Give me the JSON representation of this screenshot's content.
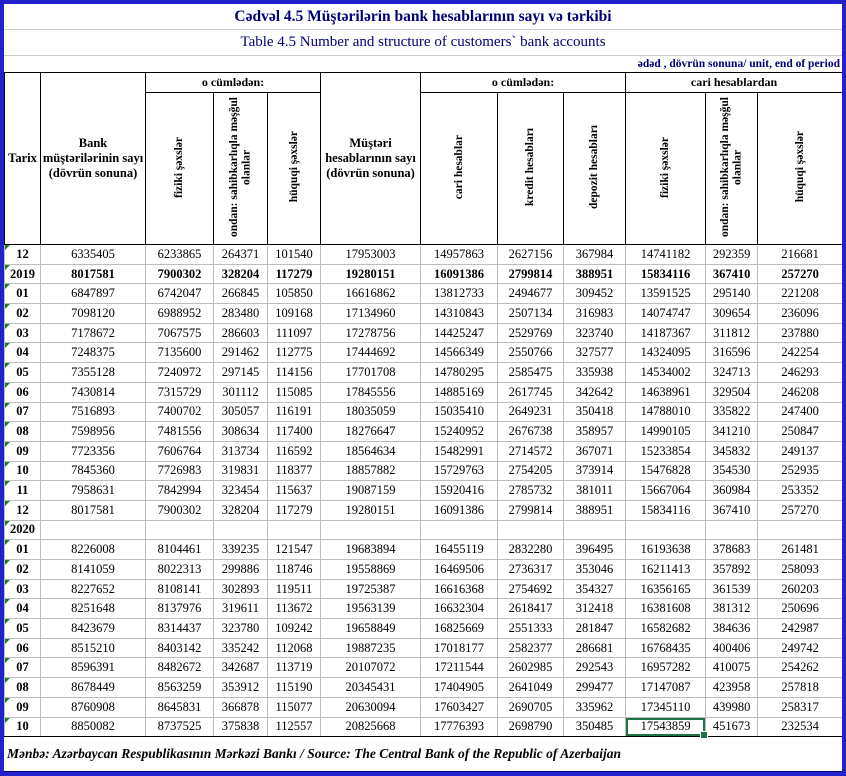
{
  "page": {
    "title_az": "Cədvəl 4.5 Müştərilərin bank hesablarının sayı və tərkibi",
    "title_en": "Table 4.5 Number and structure of customers` bank accounts",
    "unit_note": "ədəd , dövrün sonuna/ unit, end of period",
    "footer": "Mənbə: Azərbaycan Respublikasının Mərkəzi Bankı / Source: The Central Bank of the Republic of Azerbaijan"
  },
  "colors": {
    "frame_blue": "#2222cc",
    "title_navy": "#000077",
    "selection_green": "#217346",
    "flag_green": "#1f7a33",
    "gridline_gray": "#bdbdbd"
  },
  "table": {
    "header": {
      "tarix": "Tarix",
      "bank_customers": "Bank müştərilərinin sayı (dövrün sonuna)",
      "including1": "o cümlədən:",
      "customer_accounts": "Müştəri hesablarının sayı (dövrün sonuna)",
      "including2": "o cümlədən:",
      "from_current": "cari hesablardan",
      "sub": [
        "fiziki şəxslər",
        "ondan: sahibkarlıqla məşğul olanlar",
        "hüquqi şəxslər",
        "cari hesablar",
        "kredit hesabları",
        "depozit hesabları",
        "fiziki şəxslər",
        "ondan: sahibkarlıqla məşğul olanlar",
        "hüquqi şəxslər"
      ]
    },
    "rows": [
      {
        "label": "12",
        "bold": false,
        "values": [
          "6335405",
          "6233865",
          "264371",
          "101540",
          "17953003",
          "14957863",
          "2627156",
          "367984",
          "14741182",
          "292359",
          "216681"
        ]
      },
      {
        "label": "2019",
        "bold": true,
        "values": [
          "8017581",
          "7900302",
          "328204",
          "117279",
          "19280151",
          "16091386",
          "2799814",
          "388951",
          "15834116",
          "367410",
          "257270"
        ]
      },
      {
        "label": "01",
        "bold": false,
        "values": [
          "6847897",
          "6742047",
          "266845",
          "105850",
          "16616862",
          "13812733",
          "2494677",
          "309452",
          "13591525",
          "295140",
          "221208"
        ]
      },
      {
        "label": "02",
        "bold": false,
        "values": [
          "7098120",
          "6988952",
          "283480",
          "109168",
          "17134960",
          "14310843",
          "2507134",
          "316983",
          "14074747",
          "309654",
          "236096"
        ]
      },
      {
        "label": "03",
        "bold": false,
        "values": [
          "7178672",
          "7067575",
          "286603",
          "111097",
          "17278756",
          "14425247",
          "2529769",
          "323740",
          "14187367",
          "311812",
          "237880"
        ]
      },
      {
        "label": "04",
        "bold": false,
        "values": [
          "7248375",
          "7135600",
          "291462",
          "112775",
          "17444692",
          "14566349",
          "2550766",
          "327577",
          "14324095",
          "316596",
          "242254"
        ]
      },
      {
        "label": "05",
        "bold": false,
        "values": [
          "7355128",
          "7240972",
          "297145",
          "114156",
          "17701708",
          "14780295",
          "2585475",
          "335938",
          "14534002",
          "324713",
          "246293"
        ]
      },
      {
        "label": "06",
        "bold": false,
        "values": [
          "7430814",
          "7315729",
          "301112",
          "115085",
          "17845556",
          "14885169",
          "2617745",
          "342642",
          "14638961",
          "329504",
          "246208"
        ]
      },
      {
        "label": "07",
        "bold": false,
        "values": [
          "7516893",
          "7400702",
          "305057",
          "116191",
          "18035059",
          "15035410",
          "2649231",
          "350418",
          "14788010",
          "335822",
          "247400"
        ]
      },
      {
        "label": "08",
        "bold": false,
        "values": [
          "7598956",
          "7481556",
          "308634",
          "117400",
          "18276647",
          "15240952",
          "2676738",
          "358957",
          "14990105",
          "341210",
          "250847"
        ]
      },
      {
        "label": "09",
        "bold": false,
        "values": [
          "7723356",
          "7606764",
          "313734",
          "116592",
          "18564634",
          "15482991",
          "2714572",
          "367071",
          "15233854",
          "345832",
          "249137"
        ]
      },
      {
        "label": "10",
        "bold": false,
        "values": [
          "7845360",
          "7726983",
          "319831",
          "118377",
          "18857882",
          "15729763",
          "2754205",
          "373914",
          "15476828",
          "354530",
          "252935"
        ]
      },
      {
        "label": "11",
        "bold": false,
        "values": [
          "7958631",
          "7842994",
          "323454",
          "115637",
          "19087159",
          "15920416",
          "2785732",
          "381011",
          "15667064",
          "360984",
          "253352"
        ]
      },
      {
        "label": "12",
        "bold": false,
        "values": [
          "8017581",
          "7900302",
          "328204",
          "117279",
          "19280151",
          "16091386",
          "2799814",
          "388951",
          "15834116",
          "367410",
          "257270"
        ]
      },
      {
        "label": "2020",
        "bold": true,
        "values": [
          "",
          "",
          "",
          "",
          "",
          "",
          "",
          "",
          "",
          "",
          ""
        ]
      },
      {
        "label": "01",
        "bold": false,
        "values": [
          "8226008",
          "8104461",
          "339235",
          "121547",
          "19683894",
          "16455119",
          "2832280",
          "396495",
          "16193638",
          "378683",
          "261481"
        ]
      },
      {
        "label": "02",
        "bold": false,
        "values": [
          "8141059",
          "8022313",
          "299886",
          "118746",
          "19558869",
          "16469506",
          "2736317",
          "353046",
          "16211413",
          "357892",
          "258093"
        ]
      },
      {
        "label": "03",
        "bold": false,
        "values": [
          "8227652",
          "8108141",
          "302893",
          "119511",
          "19725387",
          "16616368",
          "2754692",
          "354327",
          "16356165",
          "361539",
          "260203"
        ]
      },
      {
        "label": "04",
        "bold": false,
        "values": [
          "8251648",
          "8137976",
          "319611",
          "113672",
          "19563139",
          "16632304",
          "2618417",
          "312418",
          "16381608",
          "381312",
          "250696"
        ]
      },
      {
        "label": "05",
        "bold": false,
        "values": [
          "8423679",
          "8314437",
          "323780",
          "109242",
          "19658849",
          "16825669",
          "2551333",
          "281847",
          "16582682",
          "384636",
          "242987"
        ]
      },
      {
        "label": "06",
        "bold": false,
        "values": [
          "8515210",
          "8403142",
          "335242",
          "112068",
          "19887235",
          "17018177",
          "2582377",
          "286681",
          "16768435",
          "400406",
          "249742"
        ]
      },
      {
        "label": "07",
        "bold": false,
        "values": [
          "8596391",
          "8482672",
          "342687",
          "113719",
          "20107072",
          "17211544",
          "2602985",
          "292543",
          "16957282",
          "410075",
          "254262"
        ]
      },
      {
        "label": "08",
        "bold": false,
        "values": [
          "8678449",
          "8563259",
          "353912",
          "115190",
          "20345431",
          "17404905",
          "2641049",
          "299477",
          "17147087",
          "423958",
          "257818"
        ]
      },
      {
        "label": "09",
        "bold": false,
        "values": [
          "8760908",
          "8645831",
          "366878",
          "115077",
          "20630094",
          "17603427",
          "2690705",
          "335962",
          "17345110",
          "439980",
          "258317"
        ]
      },
      {
        "label": "10",
        "bold": false,
        "selected": 8,
        "values": [
          "8850082",
          "8737525",
          "375838",
          "112557",
          "20825668",
          "17776393",
          "2698790",
          "350485",
          "17543859",
          "451673",
          "232534"
        ]
      }
    ]
  }
}
